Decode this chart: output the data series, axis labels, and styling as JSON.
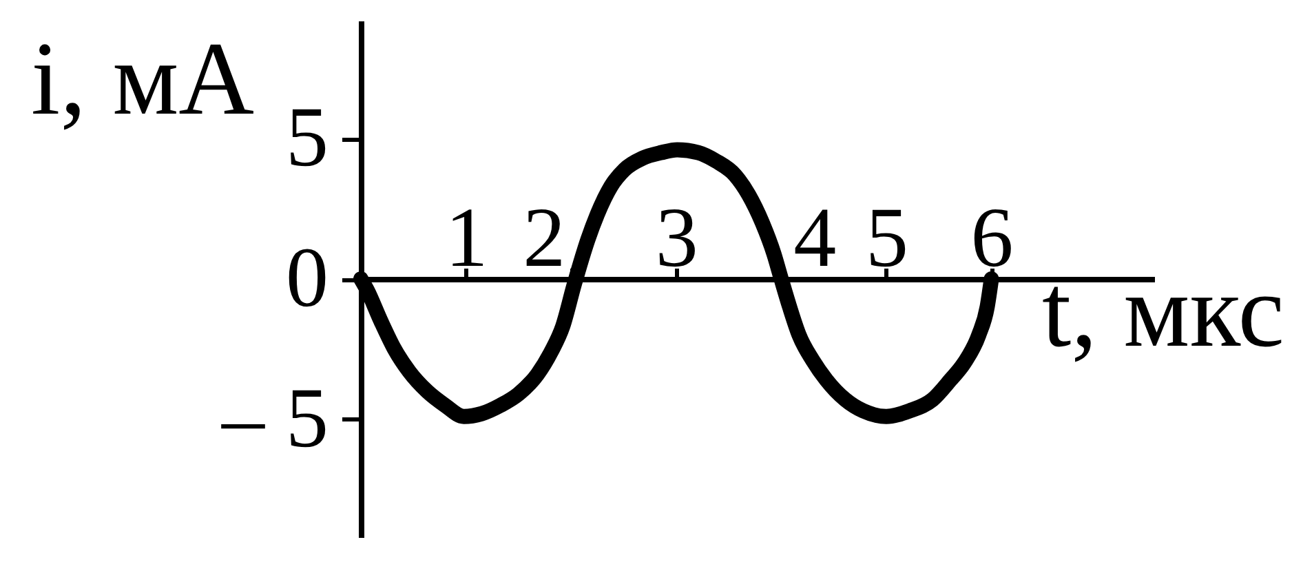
{
  "chart_data": {
    "type": "line",
    "xlabel": "t, мкс",
    "ylabel": "i, мА",
    "x": [
      0,
      0.06,
      0.19,
      0.32,
      0.46,
      0.63,
      0.8,
      0.98,
      1.15,
      1.33,
      1.5,
      1.68,
      1.81,
      1.92,
      2.03,
      2.16,
      2.25,
      2.38,
      2.51,
      2.68,
      2.86,
      3.01,
      3.21,
      3.38,
      3.56,
      3.69,
      3.82,
      3.93,
      4.0,
      4.08,
      4.17,
      4.3,
      4.43,
      4.61,
      4.78,
      5.0,
      5.22,
      5.44,
      5.61,
      5.74,
      5.88,
      5.96,
      6.0
    ],
    "series": [
      {
        "color": "#000000",
        "values": [
          0,
          -0.4,
          -1.5,
          -2.5,
          -3.3,
          -4.0,
          -4.5,
          -4.9,
          -4.8,
          -4.5,
          -4.1,
          -3.4,
          -2.6,
          -1.7,
          -0.2,
          1.4,
          2.3,
          3.3,
          3.9,
          4.3,
          4.5,
          4.6,
          4.5,
          4.2,
          3.7,
          3.0,
          2.0,
          0.9,
          0,
          -1.0,
          -2.0,
          -2.9,
          -3.6,
          -4.3,
          -4.7,
          -4.9,
          -4.7,
          -4.3,
          -3.6,
          -3.0,
          -2.0,
          -1.0,
          0
        ]
      }
    ],
    "xlim": [
      0,
      7.55
    ],
    "ylim": [
      -9.2,
      9.2
    ],
    "xticks": [
      1,
      2,
      3,
      4,
      5,
      6
    ],
    "yticks": [
      {
        "value": -5,
        "label": "– 5"
      },
      0,
      5
    ]
  }
}
